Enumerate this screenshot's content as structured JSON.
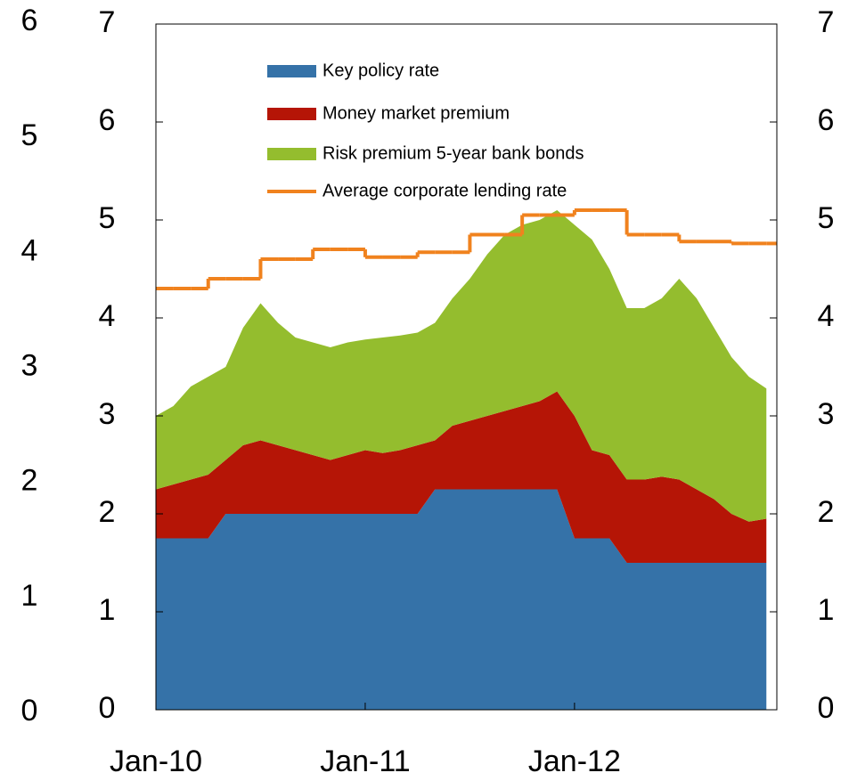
{
  "chart_data": {
    "type": "stacked_area_line",
    "x": [
      "Jan-10",
      "Feb-10",
      "Mar-10",
      "Apr-10",
      "May-10",
      "Jun-10",
      "Jul-10",
      "Aug-10",
      "Sep-10",
      "Oct-10",
      "Nov-10",
      "Dec-10",
      "Jan-11",
      "Feb-11",
      "Mar-11",
      "Apr-11",
      "May-11",
      "Jun-11",
      "Jul-11",
      "Aug-11",
      "Sep-11",
      "Oct-11",
      "Nov-11",
      "Dec-11",
      "Jan-12",
      "Feb-12",
      "Mar-12",
      "Apr-12",
      "May-12",
      "Jun-12",
      "Jul-12",
      "Aug-12",
      "Sep-12",
      "Oct-12",
      "Nov-12",
      "Dec-12"
    ],
    "xticks": [
      "Jan-10",
      "Jan-11",
      "Jan-12"
    ],
    "series": [
      {
        "name": "Key policy rate",
        "color": "#3572a8",
        "kind": "area",
        "values": [
          1.75,
          1.75,
          1.75,
          1.75,
          2.0,
          2.0,
          2.0,
          2.0,
          2.0,
          2.0,
          2.0,
          2.0,
          2.0,
          2.0,
          2.0,
          2.0,
          2.25,
          2.25,
          2.25,
          2.25,
          2.25,
          2.25,
          2.25,
          2.25,
          1.75,
          1.75,
          1.75,
          1.5,
          1.5,
          1.5,
          1.5,
          1.5,
          1.5,
          1.5,
          1.5,
          1.5
        ]
      },
      {
        "name": "Money market premium",
        "color": "#b51506",
        "kind": "area",
        "values": [
          0.5,
          0.55,
          0.6,
          0.65,
          0.55,
          0.7,
          0.75,
          0.7,
          0.65,
          0.6,
          0.55,
          0.6,
          0.65,
          0.62,
          0.65,
          0.7,
          0.5,
          0.65,
          0.7,
          0.75,
          0.8,
          0.85,
          0.9,
          1.0,
          1.25,
          0.9,
          0.85,
          0.85,
          0.85,
          0.88,
          0.85,
          0.75,
          0.65,
          0.5,
          0.42,
          0.45
        ]
      },
      {
        "name": "Risk premium 5-year bank bonds",
        "color": "#94bd2e",
        "kind": "area",
        "values": [
          0.75,
          0.8,
          0.95,
          1.0,
          0.95,
          1.2,
          1.4,
          1.25,
          1.15,
          1.15,
          1.15,
          1.15,
          1.13,
          1.18,
          1.17,
          1.15,
          1.2,
          1.3,
          1.45,
          1.65,
          1.8,
          1.85,
          1.85,
          1.85,
          1.95,
          2.15,
          1.9,
          1.75,
          1.75,
          1.82,
          2.05,
          1.95,
          1.75,
          1.6,
          1.48,
          1.33
        ]
      },
      {
        "name": "Average corporate lending rate",
        "color": "#f0821e",
        "kind": "line",
        "values": [
          4.3,
          4.3,
          4.3,
          4.4,
          4.4,
          4.4,
          4.6,
          4.6,
          4.6,
          4.7,
          4.7,
          4.7,
          4.62,
          4.62,
          4.62,
          4.67,
          4.67,
          4.67,
          4.85,
          4.85,
          4.85,
          5.05,
          5.05,
          5.05,
          5.1,
          5.1,
          5.1,
          4.85,
          4.85,
          4.85,
          4.78,
          4.78,
          4.78,
          4.76,
          4.76,
          4.76
        ]
      }
    ],
    "ylim": [
      0,
      7
    ],
    "yticks": [
      0,
      1,
      2,
      3,
      4,
      5,
      6,
      7
    ],
    "y2lim": [
      0,
      7
    ],
    "y2ticks": [
      0,
      1,
      2,
      3,
      4,
      5,
      6,
      7
    ],
    "outer_lim": [
      0,
      6
    ],
    "outer_ticks": [
      0,
      1,
      2,
      3,
      4,
      5,
      6
    ]
  }
}
